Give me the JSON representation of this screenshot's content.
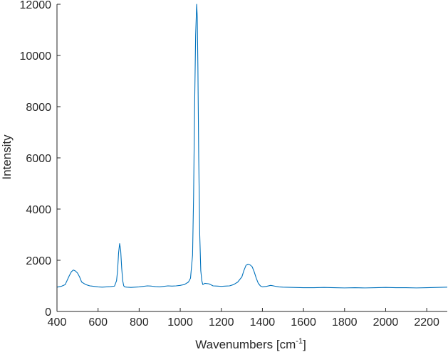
{
  "chart_data": {
    "type": "line",
    "title": "",
    "xlabel": "Wavenumbers [cm",
    "xlabel_superscript": "-1",
    "xlabel_suffix": "]",
    "ylabel": "Intensity",
    "xlim": [
      400,
      2300
    ],
    "ylim": [
      0,
      12000
    ],
    "xticks": [
      400,
      600,
      800,
      1000,
      1200,
      1400,
      1600,
      1800,
      2000,
      2200
    ],
    "yticks": [
      0,
      2000,
      4000,
      6000,
      8000,
      10000,
      12000
    ],
    "grid": false,
    "series_color": "#0072bd",
    "series": [
      {
        "x": [
          400,
          420,
          440,
          460,
          470,
          480,
          490,
          500,
          510,
          520,
          540,
          560,
          580,
          600,
          620,
          640,
          660,
          680,
          690,
          695,
          700,
          705,
          710,
          715,
          720,
          725,
          730,
          740,
          760,
          780,
          800,
          820,
          840,
          860,
          880,
          900,
          920,
          940,
          960,
          980,
          1000,
          1020,
          1040,
          1050,
          1060,
          1065,
          1070,
          1075,
          1080,
          1083,
          1086,
          1090,
          1095,
          1100,
          1105,
          1110,
          1120,
          1140,
          1160,
          1180,
          1200,
          1220,
          1240,
          1260,
          1280,
          1300,
          1310,
          1320,
          1330,
          1340,
          1350,
          1360,
          1370,
          1380,
          1390,
          1400,
          1420,
          1440,
          1460,
          1480,
          1500,
          1550,
          1600,
          1650,
          1700,
          1750,
          1800,
          1850,
          1900,
          1950,
          2000,
          2050,
          2100,
          2150,
          2200,
          2250,
          2300
        ],
        "y": [
          950,
          980,
          1050,
          1400,
          1550,
          1620,
          1580,
          1500,
          1350,
          1150,
          1050,
          1000,
          980,
          960,
          950,
          960,
          970,
          990,
          1200,
          1600,
          2300,
          2650,
          2400,
          1700,
          1200,
          1000,
          960,
          950,
          940,
          950,
          960,
          980,
          1000,
          990,
          970,
          960,
          980,
          1000,
          990,
          1000,
          1020,
          1050,
          1150,
          1300,
          2200,
          4500,
          8000,
          10800,
          12000,
          11500,
          9500,
          6000,
          3000,
          1600,
          1200,
          1050,
          1100,
          1080,
          1000,
          990,
          980,
          990,
          1000,
          1050,
          1150,
          1350,
          1600,
          1800,
          1850,
          1820,
          1750,
          1550,
          1300,
          1100,
          1000,
          960,
          980,
          1020,
          990,
          960,
          950,
          940,
          930,
          930,
          940,
          930,
          920,
          930,
          920,
          930,
          940,
          930,
          930,
          920,
          930,
          940,
          950
        ]
      }
    ]
  }
}
